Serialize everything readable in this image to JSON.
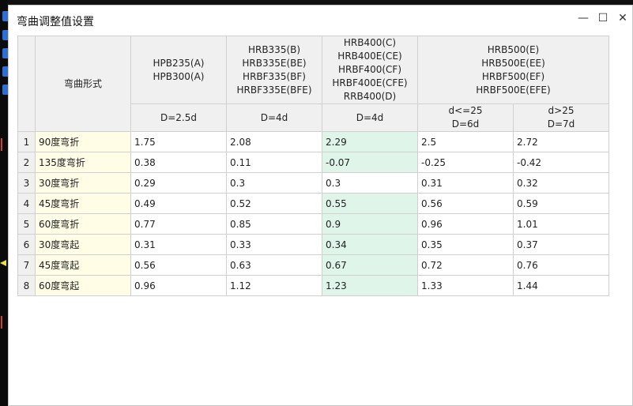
{
  "window": {
    "title": "弯曲调整值设置"
  },
  "title_buttons": {
    "minimize": "—",
    "maximize": "☐",
    "close": "✕"
  },
  "table": {
    "form_header": "弯曲形式",
    "groups": [
      {
        "lines": [
          "HPB235(A)",
          "HPB300(A)"
        ],
        "subs": [
          "D=2.5d"
        ]
      },
      {
        "lines": [
          "HRB335(B)",
          "HRB335E(BE)",
          "HRBF335(BF)",
          "HRBF335E(BFE)"
        ],
        "subs": [
          "D=4d"
        ]
      },
      {
        "lines": [
          "HRB400(C)",
          "HRB400E(CE)",
          "HRBF400(CF)",
          "HRBF400E(CFE)",
          "RRB400(D)"
        ],
        "subs": [
          "D=4d"
        ]
      },
      {
        "lines": [
          "HRB500(E)",
          "HRB500E(EE)",
          "HRBF500(EF)",
          "HRBF500E(EFE)"
        ],
        "subs": [
          [
            "d<=25",
            "D=6d"
          ],
          [
            "d>25",
            "D=7d"
          ]
        ]
      }
    ],
    "rows": [
      {
        "num": "1",
        "form": "90度弯折",
        "values": [
          "1.75",
          "2.08",
          "2.29",
          "2.5",
          "2.72"
        ]
      },
      {
        "num": "2",
        "form": "135度弯折",
        "values": [
          "0.38",
          "0.11",
          "-0.07",
          "-0.25",
          "-0.42"
        ]
      },
      {
        "num": "3",
        "form": "30度弯折",
        "values": [
          "0.29",
          "0.3",
          "0.3",
          "0.31",
          "0.32"
        ]
      },
      {
        "num": "4",
        "form": "45度弯折",
        "values": [
          "0.49",
          "0.52",
          "0.55",
          "0.56",
          "0.59"
        ]
      },
      {
        "num": "5",
        "form": "60度弯折",
        "values": [
          "0.77",
          "0.85",
          "0.9",
          "0.96",
          "1.01"
        ]
      },
      {
        "num": "6",
        "form": "30度弯起",
        "values": [
          "0.31",
          "0.33",
          "0.34",
          "0.35",
          "0.37"
        ]
      },
      {
        "num": "7",
        "form": "45度弯起",
        "values": [
          "0.56",
          "0.63",
          "0.67",
          "0.72",
          "0.76"
        ]
      },
      {
        "num": "8",
        "form": "60度弯起",
        "values": [
          "0.96",
          "1.12",
          "1.23",
          "1.33",
          "1.44"
        ]
      }
    ],
    "highlighted_cells": [
      [
        0,
        2
      ],
      [
        1,
        2
      ],
      [
        3,
        2
      ],
      [
        4,
        2
      ],
      [
        5,
        2
      ],
      [
        6,
        2
      ],
      [
        7,
        2
      ]
    ],
    "colors": {
      "form_bg": "#fffde6",
      "highlight_bg": "#dff5ea",
      "header_bg": "#f0f0f0"
    }
  }
}
